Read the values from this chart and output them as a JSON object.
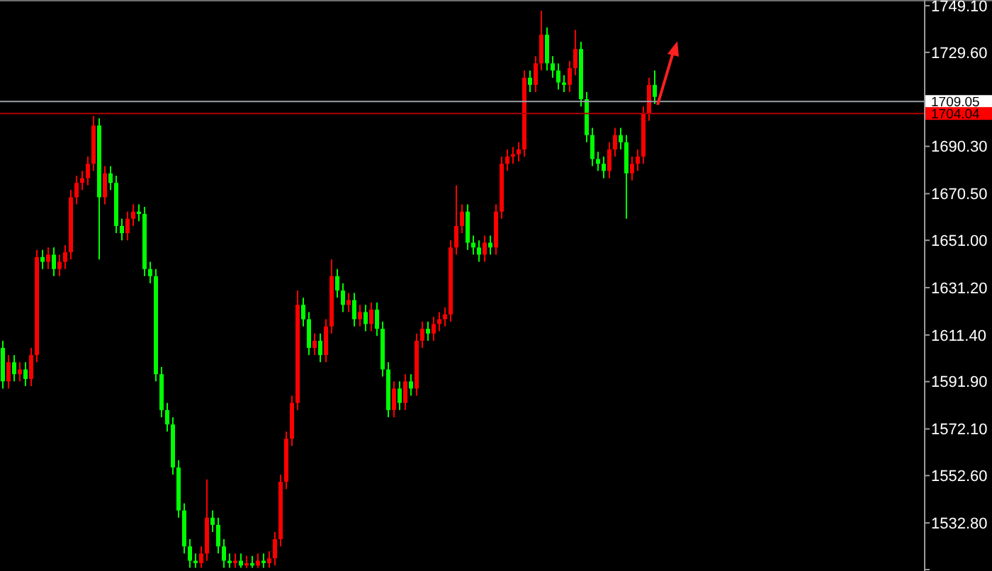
{
  "chart_data": {
    "type": "candlestick",
    "categories": [
      null,
      null,
      null,
      null,
      null,
      null,
      null,
      null,
      null,
      null,
      null,
      null,
      null,
      null,
      null,
      null,
      null,
      null,
      null,
      null,
      null,
      null,
      null,
      null,
      null,
      null,
      null,
      null,
      null,
      null,
      null,
      null,
      null,
      null,
      null,
      null,
      null,
      null,
      null,
      null,
      null,
      null,
      null,
      null,
      null,
      null,
      null,
      null,
      null,
      null,
      null,
      null,
      null,
      null,
      null,
      null,
      null,
      null,
      null,
      null,
      null,
      null,
      null,
      null,
      null,
      null,
      null,
      null,
      null,
      null,
      null,
      null,
      null,
      null,
      null,
      null,
      null,
      null,
      null,
      null,
      null,
      null,
      null,
      null,
      null,
      null,
      null,
      null,
      null,
      null,
      null,
      null,
      null,
      null,
      null,
      null,
      null,
      null,
      null,
      null,
      null,
      null,
      null,
      null,
      null,
      null,
      null,
      null,
      null,
      null,
      null,
      null,
      null,
      null,
      null,
      null,
      null,
      null,
      null,
      null,
      null,
      null,
      null,
      null,
      null,
      null,
      null,
      null,
      null,
      null,
      null,
      null,
      null,
      null,
      null,
      null,
      null,
      null,
      null,
      null,
      null,
      null,
      null,
      null,
      null,
      null,
      null,
      null,
      null,
      null,
      null,
      null,
      null,
      null,
      null,
      null,
      null,
      null,
      null,
      null,
      null,
      null,
      null
    ],
    "ohlc": [
      [
        1606,
        1609,
        1589,
        1592
      ],
      [
        1592,
        1603,
        1589,
        1600
      ],
      [
        1600,
        1603,
        1592,
        1595
      ],
      [
        1595,
        1600,
        1592,
        1597
      ],
      [
        1597,
        1600,
        1590,
        1593
      ],
      [
        1593,
        1606,
        1590,
        1603
      ],
      [
        1603,
        1647,
        1600,
        1644
      ],
      [
        1644,
        1647,
        1639,
        1642
      ],
      [
        1642,
        1648,
        1639,
        1645
      ],
      [
        1645,
        1648,
        1636,
        1639
      ],
      [
        1639,
        1645,
        1636,
        1642
      ],
      [
        1642,
        1649,
        1639,
        1646
      ],
      [
        1646,
        1672,
        1643,
        1669
      ],
      [
        1669,
        1678,
        1666,
        1675
      ],
      [
        1675,
        1680,
        1672,
        1677
      ],
      [
        1677,
        1686,
        1674,
        1683
      ],
      [
        1683,
        1703,
        1680,
        1699
      ],
      [
        1699,
        1702,
        1643,
        1669
      ],
      [
        1669,
        1682,
        1666,
        1679
      ],
      [
        1679,
        1682,
        1672,
        1675
      ],
      [
        1675,
        1678,
        1654,
        1657
      ],
      [
        1657,
        1660,
        1651,
        1654
      ],
      [
        1654,
        1663,
        1651,
        1660
      ],
      [
        1660,
        1666,
        1657,
        1663
      ],
      [
        1663,
        1666,
        1659,
        1662
      ],
      [
        1662,
        1665,
        1636,
        1639
      ],
      [
        1639,
        1642,
        1633,
        1636
      ],
      [
        1636,
        1639,
        1592,
        1595
      ],
      [
        1595,
        1598,
        1577,
        1580
      ],
      [
        1580,
        1583,
        1571,
        1574
      ],
      [
        1574,
        1577,
        1553,
        1556
      ],
      [
        1556,
        1559,
        1535,
        1538
      ],
      [
        1538,
        1541,
        1520,
        1523
      ],
      [
        1523,
        1526,
        1514,
        1517
      ],
      [
        1517,
        1520,
        1514,
        1516
      ],
      [
        1516,
        1523,
        1514,
        1520
      ],
      [
        1520,
        1551,
        1517,
        1535
      ],
      [
        1535,
        1538,
        1529,
        1532
      ],
      [
        1532,
        1535,
        1520,
        1523
      ],
      [
        1523,
        1526,
        1514,
        1517
      ],
      [
        1517,
        1520,
        1514,
        1516
      ],
      [
        1516,
        1520,
        1514,
        1517
      ],
      [
        1517,
        1520,
        1514,
        1515
      ],
      [
        1515,
        1519,
        1514,
        1516
      ],
      [
        1516,
        1519,
        1514,
        1515
      ],
      [
        1515,
        1520,
        1514,
        1517
      ],
      [
        1517,
        1520,
        1514,
        1516
      ],
      [
        1516,
        1521,
        1514,
        1518
      ],
      [
        1518,
        1529,
        1515,
        1526
      ],
      [
        1526,
        1553,
        1523,
        1550
      ],
      [
        1550,
        1571,
        1547,
        1568
      ],
      [
        1568,
        1586,
        1565,
        1583
      ],
      [
        1583,
        1630,
        1580,
        1624
      ],
      [
        1624,
        1627,
        1615,
        1618
      ],
      [
        1618,
        1621,
        1603,
        1606
      ],
      [
        1606,
        1612,
        1603,
        1609
      ],
      [
        1609,
        1612,
        1600,
        1603
      ],
      [
        1603,
        1618,
        1600,
        1615
      ],
      [
        1615,
        1643,
        1612,
        1636
      ],
      [
        1636,
        1639,
        1627,
        1630
      ],
      [
        1630,
        1633,
        1621,
        1624
      ],
      [
        1624,
        1629,
        1621,
        1626
      ],
      [
        1626,
        1629,
        1615,
        1618
      ],
      [
        1618,
        1624,
        1615,
        1621
      ],
      [
        1621,
        1624,
        1613,
        1616
      ],
      [
        1616,
        1625,
        1613,
        1622
      ],
      [
        1622,
        1625,
        1611,
        1614
      ],
      [
        1614,
        1617,
        1594,
        1597
      ],
      [
        1597,
        1600,
        1577,
        1580
      ],
      [
        1580,
        1592,
        1577,
        1589
      ],
      [
        1589,
        1592,
        1580,
        1583
      ],
      [
        1583,
        1595,
        1580,
        1592
      ],
      [
        1592,
        1595,
        1586,
        1589
      ],
      [
        1589,
        1612,
        1586,
        1609
      ],
      [
        1609,
        1617,
        1606,
        1614
      ],
      [
        1614,
        1617,
        1609,
        1612
      ],
      [
        1612,
        1619,
        1609,
        1616
      ],
      [
        1616,
        1621,
        1613,
        1618
      ],
      [
        1618,
        1623,
        1615,
        1620
      ],
      [
        1620,
        1651,
        1617,
        1648
      ],
      [
        1648,
        1674,
        1645,
        1657
      ],
      [
        1657,
        1666,
        1654,
        1663
      ],
      [
        1663,
        1666,
        1647,
        1650
      ],
      [
        1650,
        1653,
        1645,
        1648
      ],
      [
        1648,
        1651,
        1642,
        1645
      ],
      [
        1645,
        1653,
        1642,
        1650
      ],
      [
        1650,
        1653,
        1645,
        1648
      ],
      [
        1648,
        1666,
        1645,
        1663
      ],
      [
        1663,
        1686,
        1660,
        1683
      ],
      [
        1683,
        1689,
        1680,
        1686
      ],
      [
        1686,
        1690,
        1683,
        1687
      ],
      [
        1687,
        1692,
        1684,
        1689
      ],
      [
        1689,
        1722,
        1686,
        1719
      ],
      [
        1719,
        1722,
        1713,
        1716
      ],
      [
        1716,
        1728,
        1713,
        1725
      ],
      [
        1725,
        1747,
        1722,
        1737
      ],
      [
        1737,
        1740,
        1722,
        1725
      ],
      [
        1725,
        1728,
        1719,
        1722
      ],
      [
        1722,
        1725,
        1714,
        1717
      ],
      [
        1717,
        1720,
        1713,
        1716
      ],
      [
        1716,
        1726,
        1713,
        1723
      ],
      [
        1723,
        1739,
        1720,
        1731
      ],
      [
        1731,
        1734,
        1707,
        1710
      ],
      [
        1710,
        1713,
        1692,
        1695
      ],
      [
        1695,
        1698,
        1682,
        1685
      ],
      [
        1685,
        1688,
        1680,
        1683
      ],
      [
        1683,
        1686,
        1677,
        1680
      ],
      [
        1680,
        1692,
        1677,
        1689
      ],
      [
        1689,
        1698,
        1686,
        1695
      ],
      [
        1695,
        1698,
        1689,
        1692
      ],
      [
        1692,
        1695,
        1660,
        1679
      ],
      [
        1679,
        1686,
        1676,
        1683
      ],
      [
        1683,
        1689,
        1680,
        1686
      ],
      [
        1686,
        1707,
        1683,
        1704
      ],
      [
        1704,
        1719,
        1701,
        1716
      ],
      [
        1716,
        1722,
        1708,
        1711
      ],
      null,
      null,
      null,
      null,
      null,
      null,
      null,
      null,
      null,
      null,
      null,
      null,
      null,
      null,
      null,
      null,
      null,
      null,
      null,
      null,
      null,
      null,
      null,
      null,
      null,
      null,
      null,
      null,
      null,
      null,
      null,
      null,
      null,
      null,
      null,
      null,
      null,
      null,
      null,
      null,
      null,
      null,
      null,
      null,
      null,
      null,
      null
    ],
    "colors": [
      "#00ff00",
      "#ff0000",
      "#00ff00",
      "#ff0000",
      "#00ff00",
      "#ff0000",
      "#ff0000",
      "#00ff00",
      "#ff0000",
      "#00ff00",
      "#ff0000",
      "#ff0000",
      "#ff0000",
      "#ff0000",
      "#ff0000",
      "#ff0000",
      "#ff0000",
      "#00ff00",
      "#ff0000",
      "#00ff00",
      "#00ff00",
      "#00ff00",
      "#ff0000",
      "#ff0000",
      "#00ff00",
      "#00ff00",
      "#00ff00",
      "#00ff00",
      "#00ff00",
      "#00ff00",
      "#00ff00",
      "#00ff00",
      "#00ff00",
      "#00ff00",
      "#00ff00",
      "#ff0000",
      "#ff0000",
      "#00ff00",
      "#00ff00",
      "#00ff00",
      "#00ff00",
      "#ff0000",
      "#00ff00",
      "#ff0000",
      "#00ff00",
      "#ff0000",
      "#00ff00",
      "#ff0000",
      "#ff0000",
      "#ff0000",
      "#ff0000",
      "#ff0000",
      "#ff0000",
      "#00ff00",
      "#00ff00",
      "#ff0000",
      "#00ff00",
      "#ff0000",
      "#ff0000",
      "#00ff00",
      "#00ff00",
      "#ff0000",
      "#00ff00",
      "#ff0000",
      "#00ff00",
      "#ff0000",
      "#00ff00",
      "#00ff00",
      "#00ff00",
      "#ff0000",
      "#00ff00",
      "#ff0000",
      "#00ff00",
      "#ff0000",
      "#ff0000",
      "#00ff00",
      "#ff0000",
      "#ff0000",
      "#ff0000",
      "#ff0000",
      "#ff0000",
      "#ff0000",
      "#00ff00",
      "#00ff00",
      "#00ff00",
      "#ff0000",
      "#00ff00",
      "#ff0000",
      "#ff0000",
      "#ff0000",
      "#ff0000",
      "#ff0000",
      "#ff0000",
      "#00ff00",
      "#ff0000",
      "#ff0000",
      "#00ff00",
      "#00ff00",
      "#00ff00",
      "#00ff00",
      "#ff0000",
      "#ff0000",
      "#00ff00",
      "#00ff00",
      "#00ff00",
      "#00ff00",
      "#00ff00",
      "#ff0000",
      "#ff0000",
      "#00ff00",
      "#00ff00",
      "#ff0000",
      "#ff0000",
      "#ff0000",
      "#ff0000",
      "#00ff00",
      null,
      null,
      null,
      null,
      null,
      null,
      null,
      null,
      null,
      null,
      null,
      null,
      null,
      null,
      null,
      null,
      null,
      null,
      null,
      null,
      null,
      null,
      null,
      null,
      null,
      null,
      null,
      null,
      null,
      null,
      null,
      null,
      null,
      null,
      null,
      null,
      null,
      null,
      null,
      null,
      null,
      null,
      null,
      null,
      null,
      null,
      null
    ],
    "ylim": [
      1512.7,
      1751.5
    ],
    "yticks": [
      {
        "value": 1749.1,
        "label": "1749.10"
      },
      {
        "value": 1729.6,
        "label": "1729.60"
      },
      {
        "value": 1690.3,
        "label": "1690.30"
      },
      {
        "value": 1670.5,
        "label": "1670.50"
      },
      {
        "value": 1651,
        "label": "1651.00"
      },
      {
        "value": 1631.2,
        "label": "1631.20"
      },
      {
        "value": 1611.4,
        "label": "1611.40"
      },
      {
        "value": 1591.9,
        "label": "1591.90"
      },
      {
        "value": 1572.1,
        "label": "1572.10"
      },
      {
        "value": 1552.6,
        "label": "1552.60"
      },
      {
        "value": 1532.8,
        "label": "1532.80"
      },
      {
        "value": 1513.3,
        "label": null
      }
    ],
    "ref_lines": [
      {
        "axis": "y",
        "value": 1709.05,
        "label": "1709.05",
        "color": "#9aa0a8"
      },
      {
        "axis": "y",
        "value": 1704.04,
        "label": "1704.04",
        "color": "#b00000"
      }
    ],
    "tick_labels": "y",
    "grid": false
  }
}
